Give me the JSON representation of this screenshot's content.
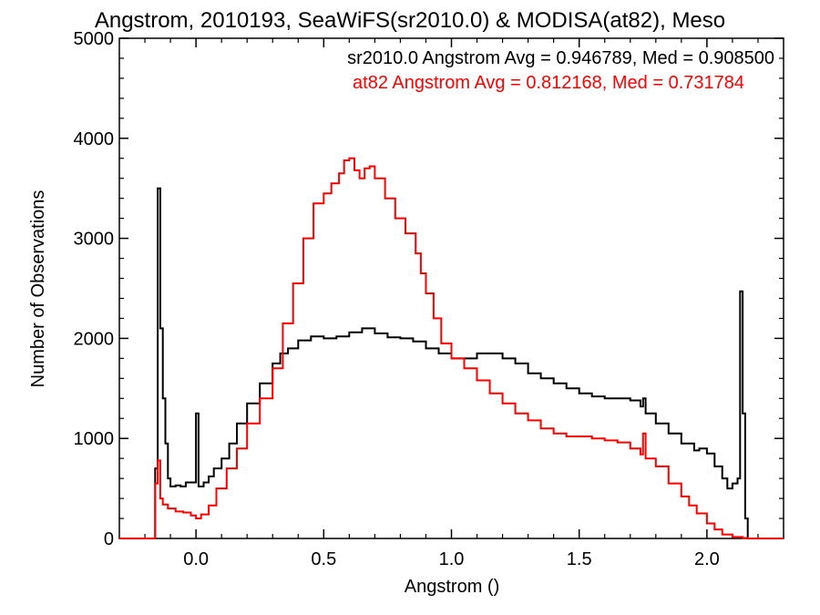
{
  "chart_data": {
    "type": "line",
    "title": "Angstrom, 2010193, SeaWiFS(sr2010.0) & MODISA(at82), Meso",
    "xlabel": "Angstrom ()",
    "ylabel": "Number of Observations",
    "xlim": [
      -0.3,
      2.3
    ],
    "ylim": [
      0,
      5000
    ],
    "x_ticks": [
      0.0,
      0.5,
      1.0,
      1.5,
      2.0
    ],
    "x_tick_labels": [
      "0.0",
      "0.5",
      "1.0",
      "1.5",
      "2.0"
    ],
    "y_ticks": [
      0,
      1000,
      2000,
      3000,
      4000,
      5000
    ],
    "y_tick_labels": [
      "0",
      "1000",
      "2000",
      "3000",
      "4000",
      "5000"
    ],
    "grid": false,
    "annotations": [
      {
        "text": "sr2010.0 Angstrom Avg = 0.946789, Med = 0.908500",
        "color": "#000000"
      },
      {
        "text": "at82 Angstrom Avg = 0.812168, Med = 0.731784",
        "color": "#ff0000"
      }
    ],
    "series": [
      {
        "color": "#000000",
        "x": [
          -0.3,
          -0.17,
          -0.16,
          -0.15,
          -0.14,
          -0.13,
          -0.12,
          -0.11,
          -0.1,
          -0.08,
          -0.06,
          -0.04,
          -0.02,
          -0.01,
          0.0,
          0.01,
          0.03,
          0.05,
          0.07,
          0.1,
          0.13,
          0.16,
          0.2,
          0.25,
          0.3,
          0.33,
          0.36,
          0.4,
          0.45,
          0.5,
          0.55,
          0.6,
          0.65,
          0.7,
          0.75,
          0.8,
          0.85,
          0.9,
          0.95,
          1.0,
          1.05,
          1.1,
          1.15,
          1.2,
          1.25,
          1.3,
          1.35,
          1.4,
          1.45,
          1.5,
          1.55,
          1.6,
          1.65,
          1.7,
          1.74,
          1.75,
          1.76,
          1.8,
          1.85,
          1.9,
          1.95,
          1.97,
          2.0,
          2.03,
          2.06,
          2.08,
          2.1,
          2.12,
          2.13,
          2.14,
          2.15,
          2.16,
          2.3
        ],
        "y": [
          0,
          0,
          700,
          3500,
          2100,
          1400,
          950,
          600,
          520,
          530,
          520,
          560,
          560,
          560,
          1250,
          520,
          560,
          620,
          700,
          800,
          950,
          1150,
          1350,
          1550,
          1750,
          1850,
          1900,
          1980,
          2020,
          2000,
          2020,
          2060,
          2100,
          2050,
          2010,
          2000,
          1970,
          1900,
          1850,
          1800,
          1800,
          1850,
          1850,
          1800,
          1750,
          1650,
          1600,
          1550,
          1500,
          1450,
          1420,
          1400,
          1400,
          1380,
          1320,
          1400,
          1250,
          1150,
          1050,
          950,
          880,
          900,
          850,
          720,
          600,
          500,
          550,
          600,
          2470,
          1250,
          200,
          0,
          0
        ]
      },
      {
        "color": "#ff0000",
        "x": [
          -0.3,
          -0.17,
          -0.16,
          -0.15,
          -0.14,
          -0.13,
          -0.11,
          -0.08,
          -0.05,
          -0.02,
          0.0,
          0.02,
          0.05,
          0.08,
          0.12,
          0.16,
          0.2,
          0.25,
          0.3,
          0.34,
          0.38,
          0.42,
          0.46,
          0.5,
          0.53,
          0.56,
          0.58,
          0.6,
          0.62,
          0.64,
          0.66,
          0.68,
          0.7,
          0.74,
          0.78,
          0.82,
          0.86,
          0.88,
          0.9,
          0.93,
          0.96,
          1.0,
          1.05,
          1.1,
          1.15,
          1.2,
          1.25,
          1.3,
          1.35,
          1.4,
          1.45,
          1.5,
          1.55,
          1.6,
          1.65,
          1.7,
          1.74,
          1.75,
          1.76,
          1.8,
          1.85,
          1.9,
          1.93,
          1.96,
          2.0,
          2.03,
          2.06,
          2.1,
          2.14,
          2.16,
          2.3
        ],
        "y": [
          0,
          0,
          550,
          780,
          400,
          340,
          300,
          270,
          260,
          230,
          200,
          240,
          330,
          500,
          700,
          900,
          1150,
          1400,
          1700,
          2150,
          2550,
          3000,
          3350,
          3450,
          3550,
          3650,
          3780,
          3800,
          3680,
          3600,
          3700,
          3720,
          3600,
          3400,
          3200,
          3050,
          2850,
          2650,
          2450,
          2200,
          1950,
          1800,
          1700,
          1580,
          1450,
          1350,
          1250,
          1180,
          1100,
          1050,
          1020,
          1020,
          1000,
          980,
          960,
          900,
          840,
          1050,
          800,
          720,
          550,
          420,
          330,
          250,
          150,
          90,
          40,
          15,
          5,
          0,
          0
        ]
      }
    ]
  }
}
